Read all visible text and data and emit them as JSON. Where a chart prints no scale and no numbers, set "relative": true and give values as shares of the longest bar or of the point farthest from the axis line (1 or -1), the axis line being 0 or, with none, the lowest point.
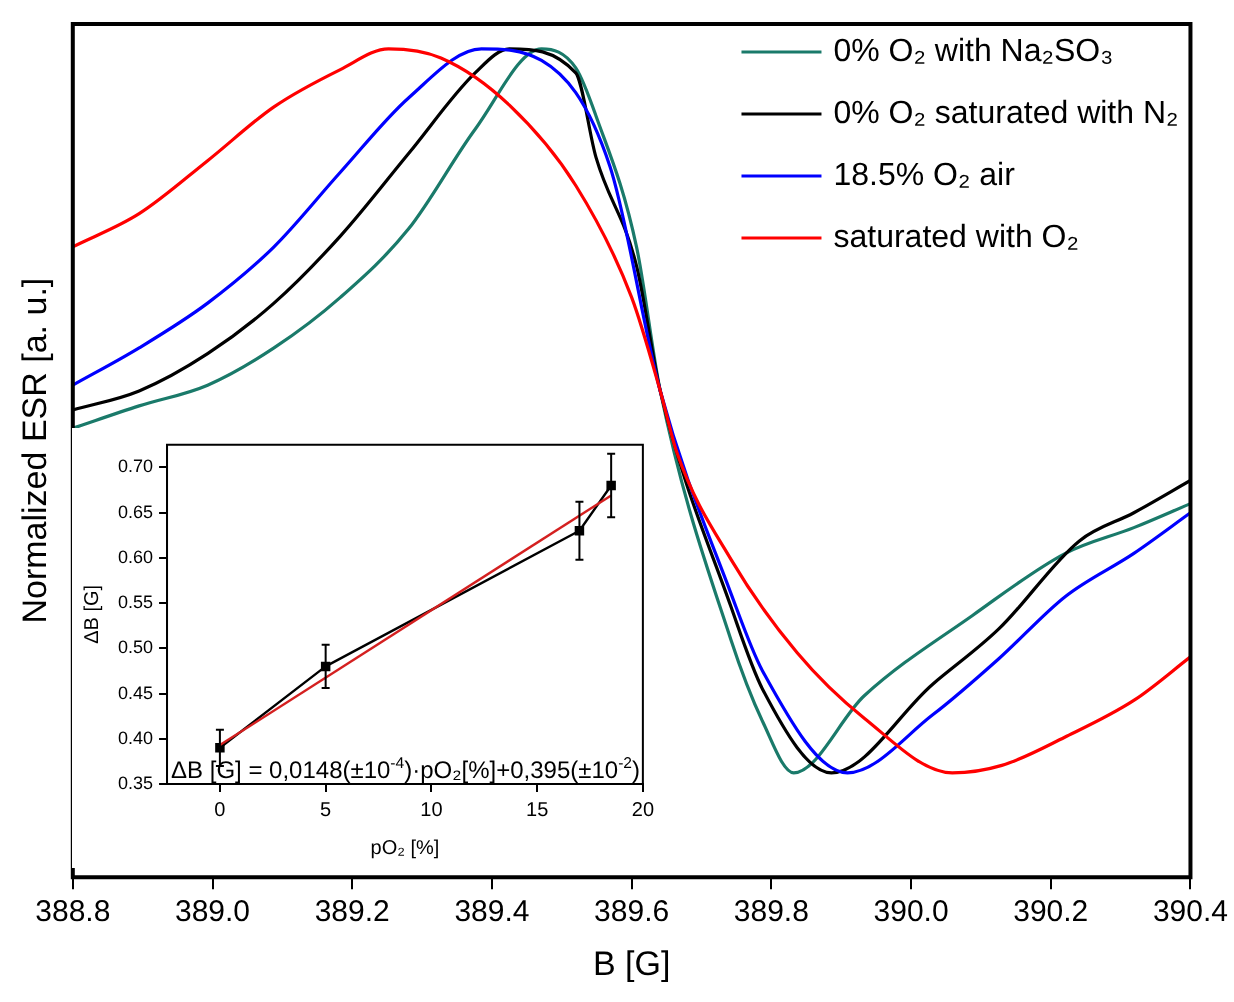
{
  "chart_data": [
    {
      "type": "line",
      "xlabel": "B [G]",
      "ylabel": "Normalized ESR [a. u.]",
      "relative": true,
      "xlim": [
        388.8,
        390.4
      ],
      "xticks": [
        388.8,
        {
          "value": 389.0,
          "label": "389.0"
        },
        389.2,
        389.4,
        389.6,
        389.8,
        {
          "value": 390.0,
          "label": "390.0"
        },
        390.2,
        390.4
      ],
      "grid": false,
      "legend": "top right",
      "marker": "none",
      "line_style": "solid",
      "series": [
        {
          "name": "0% O₂ with Na₂SO₃",
          "color": "#1a7a6a",
          "x": [
            388.8,
            388.895,
            388.993,
            389.088,
            389.183,
            389.281,
            389.376,
            389.471,
            389.52,
            389.549,
            389.607,
            389.641,
            389.742,
            389.788,
            389.832,
            389.933,
            390.088,
            390.221,
            390.319,
            390.4
          ],
          "values": [
            0.542,
            0.569,
            0.594,
            0.639,
            0.7,
            0.783,
            0.903,
            1.0,
            0.977,
            0.919,
            0.761,
            0.587,
            0.287,
            0.187,
            0.126,
            0.219,
            0.316,
            0.391,
            0.422,
            0.451
          ]
        },
        {
          "name": "0% O₂ saturated with N₂",
          "color": "#000000",
          "x": [
            388.8,
            388.895,
            388.993,
            389.088,
            389.183,
            389.281,
            389.376,
            389.425,
            389.52,
            389.549,
            389.607,
            389.641,
            389.742,
            389.788,
            389.886,
            390.031,
            390.126,
            390.241,
            390.319,
            390.4
          ],
          "values": [
            0.564,
            0.587,
            0.632,
            0.693,
            0.774,
            0.874,
            0.971,
            1.0,
            0.971,
            0.869,
            0.738,
            0.587,
            0.327,
            0.226,
            0.126,
            0.233,
            0.3,
            0.406,
            0.44,
            0.479
          ]
        },
        {
          "name": "18.5% O₂ air",
          "color": "#0000ff",
          "x": [
            388.8,
            388.895,
            388.993,
            389.088,
            389.183,
            389.281,
            389.385,
            389.471,
            389.569,
            389.641,
            389.742,
            389.788,
            389.909,
            390.031,
            390.126,
            390.221,
            390.319,
            390.4
          ],
          "values": [
            0.594,
            0.639,
            0.693,
            0.761,
            0.851,
            0.941,
            1.0,
            0.986,
            0.858,
            0.587,
            0.343,
            0.248,
            0.126,
            0.196,
            0.264,
            0.339,
            0.391,
            0.44
          ]
        },
        {
          "name": "saturated with O₂",
          "color": "#ff0000",
          "x": [
            388.8,
            388.895,
            388.993,
            389.088,
            389.183,
            389.252,
            389.327,
            389.425,
            389.52,
            389.6,
            389.641,
            389.665,
            389.742,
            389.837,
            389.933,
            390.059,
            390.13,
            390.22,
            390.32,
            390.4
          ],
          "values": [
            0.761,
            0.801,
            0.865,
            0.93,
            0.975,
            1.0,
            0.989,
            0.932,
            0.835,
            0.7,
            0.587,
            0.512,
            0.384,
            0.271,
            0.192,
            0.126,
            0.135,
            0.169,
            0.214,
            0.266
          ]
        }
      ]
    },
    {
      "type": "line",
      "xlabel": "pO₂ [%]",
      "ylabel": "ΔB [G]",
      "xlim": [
        -2.5,
        20
      ],
      "xticks": [
        0,
        5,
        10,
        15,
        20
      ],
      "ylim": [
        0.35,
        0.725
      ],
      "yticks": [
        0.35,
        {
          "value": 0.4,
          "label": "0.40"
        },
        0.45,
        {
          "value": 0.5,
          "label": "0.50"
        },
        0.55,
        {
          "value": 0.6,
          "label": "0.60"
        },
        0.65,
        {
          "value": 0.7,
          "label": "0.70"
        }
      ],
      "grid": false,
      "legend": false,
      "annotations": [
        "ΔB [G] = 0,0148(±10$^{-4}$)·pO₂[%]+0,395(±10$^{-2}$)"
      ],
      "series": [
        {
          "color": "#000000",
          "marker": "square",
          "x": [
            0,
            5,
            17,
            18.5
          ],
          "values": [
            0.39,
            0.48,
            0.63,
            0.68
          ],
          "errors": [
            0.02,
            0.024,
            0.032,
            0.035
          ]
        },
        {
          "color": "#d42020",
          "marker": "none",
          "x": [
            0,
            18.5
          ],
          "values": [
            0.393,
            0.669
          ]
        }
      ]
    }
  ]
}
